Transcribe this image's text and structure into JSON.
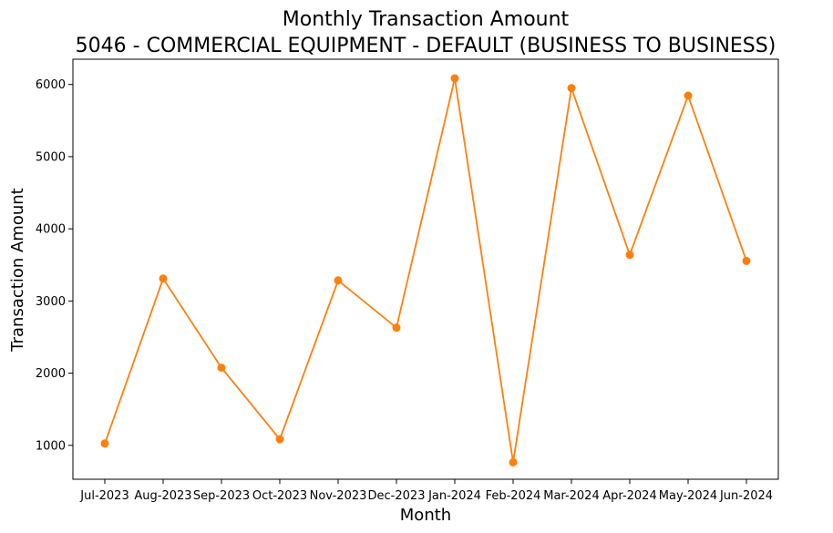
{
  "chart_data": {
    "type": "line",
    "title": "Monthly Transaction Amount",
    "subtitle": "5046 - COMMERCIAL EQUIPMENT - DEFAULT (BUSINESS TO BUSINESS)",
    "xlabel": "Month",
    "ylabel": "Transaction Amount",
    "categories": [
      "Jul-2023",
      "Aug-2023",
      "Sep-2023",
      "Oct-2023",
      "Nov-2023",
      "Dec-2023",
      "Jan-2024",
      "Feb-2024",
      "Mar-2024",
      "Apr-2024",
      "May-2024",
      "Jun-2024"
    ],
    "values": [
      1025,
      3310,
      2075,
      1085,
      3285,
      2630,
      6085,
      765,
      5950,
      3640,
      5845,
      3555
    ],
    "ylim": [
      530,
      6350
    ],
    "yticks": [
      1000,
      2000,
      3000,
      4000,
      5000,
      6000
    ],
    "grid": false,
    "color": "#ff7f0e"
  }
}
